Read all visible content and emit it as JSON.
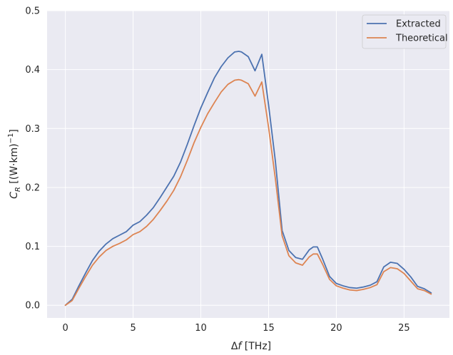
{
  "chart_data": {
    "type": "line",
    "xlabel_delta": "Δ",
    "xlabel_var": "f",
    "xlabel_unit": " [THz]",
    "ylabel_var": "C",
    "ylabel_sub": "R",
    "ylabel_unit": " [(W·km)",
    "ylabel_exp": "−1",
    "ylabel_close": "]",
    "xlim": [
      -1.35,
      28.35
    ],
    "ylim": [
      -0.0215,
      0.5
    ],
    "xticks": [
      0,
      5,
      10,
      15,
      20,
      25
    ],
    "yticks": [
      0.0,
      0.1,
      0.2,
      0.3,
      0.4,
      0.5
    ],
    "ytick_labels": [
      "0.0",
      "0.1",
      "0.2",
      "0.3",
      "0.4",
      "0.5"
    ],
    "grid": true,
    "legend_position": "top-right",
    "colors": {
      "background": "#eaeaf2",
      "grid": "#ffffff"
    },
    "series": [
      {
        "name": "Extracted",
        "color": "#4c72b0",
        "x": [
          0,
          0.5,
          1,
          1.5,
          2,
          2.5,
          3,
          3.5,
          4,
          4.5,
          5,
          5.5,
          6,
          6.5,
          7,
          7.5,
          8,
          8.5,
          9,
          9.5,
          10,
          10.5,
          11,
          11.5,
          12,
          12.5,
          12.8,
          13,
          13.5,
          14,
          14.5,
          15,
          15.5,
          16,
          16.5,
          17,
          17.5,
          18,
          18.3,
          18.6,
          19,
          19.5,
          20,
          20.5,
          21,
          21.5,
          22,
          22.5,
          23,
          23.5,
          24,
          24.5,
          25,
          25.5,
          26,
          26.5,
          27
        ],
        "y": [
          0.0,
          0.01,
          0.033,
          0.055,
          0.076,
          0.092,
          0.104,
          0.113,
          0.119,
          0.125,
          0.136,
          0.142,
          0.153,
          0.166,
          0.183,
          0.201,
          0.219,
          0.243,
          0.273,
          0.305,
          0.335,
          0.361,
          0.386,
          0.405,
          0.42,
          0.43,
          0.431,
          0.43,
          0.422,
          0.398,
          0.426,
          0.34,
          0.245,
          0.127,
          0.093,
          0.081,
          0.078,
          0.094,
          0.099,
          0.099,
          0.078,
          0.049,
          0.037,
          0.033,
          0.03,
          0.029,
          0.031,
          0.034,
          0.04,
          0.065,
          0.073,
          0.071,
          0.061,
          0.048,
          0.032,
          0.028,
          0.021
        ]
      },
      {
        "name": "Theoretical",
        "color": "#dd8452",
        "x": [
          0,
          0.5,
          1,
          1.5,
          2,
          2.5,
          3,
          3.5,
          4,
          4.5,
          5,
          5.5,
          6,
          6.5,
          7,
          7.5,
          8,
          8.5,
          9,
          9.5,
          10,
          10.5,
          11,
          11.5,
          12,
          12.5,
          12.8,
          13,
          13.5,
          14,
          14.5,
          15,
          15.5,
          16,
          16.5,
          17,
          17.5,
          18,
          18.3,
          18.6,
          19,
          19.5,
          20,
          20.5,
          21,
          21.5,
          22,
          22.5,
          23,
          23.5,
          24,
          24.5,
          25,
          25.5,
          26,
          26.5,
          27
        ],
        "y": [
          0.0,
          0.008,
          0.029,
          0.049,
          0.068,
          0.082,
          0.093,
          0.1,
          0.105,
          0.111,
          0.12,
          0.125,
          0.134,
          0.146,
          0.161,
          0.177,
          0.195,
          0.218,
          0.246,
          0.276,
          0.302,
          0.325,
          0.344,
          0.362,
          0.375,
          0.382,
          0.383,
          0.382,
          0.376,
          0.355,
          0.379,
          0.302,
          0.215,
          0.118,
          0.084,
          0.072,
          0.068,
          0.082,
          0.087,
          0.087,
          0.069,
          0.044,
          0.033,
          0.029,
          0.026,
          0.025,
          0.027,
          0.03,
          0.035,
          0.057,
          0.064,
          0.062,
          0.054,
          0.041,
          0.028,
          0.025,
          0.019
        ]
      }
    ]
  }
}
